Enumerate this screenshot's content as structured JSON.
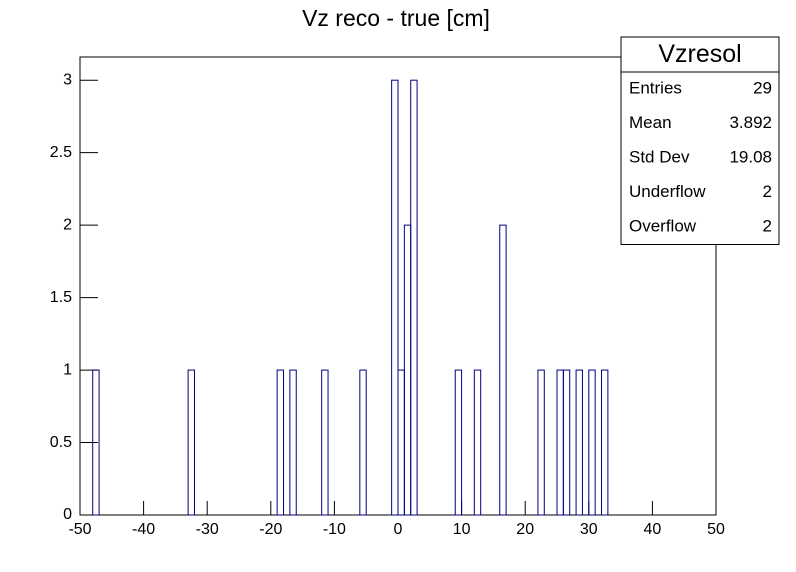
{
  "chart_data": {
    "type": "histogram",
    "title": "Vz reco - true [cm]",
    "bins": [
      -50,
      -49,
      -48,
      -47,
      -46,
      -45,
      -44,
      -43,
      -42,
      -41,
      -40,
      -39,
      -38,
      -37,
      -36,
      -35,
      -34,
      -33,
      -32,
      -31,
      -30,
      -29,
      -28,
      -27,
      -26,
      -25,
      -24,
      -23,
      -22,
      -21,
      -20,
      -19,
      -18,
      -17,
      -16,
      -15,
      -14,
      -13,
      -12,
      -11,
      -10,
      -9,
      -8,
      -7,
      -6,
      -5,
      -4,
      -3,
      -2,
      -1,
      0,
      1,
      2,
      3,
      4,
      5,
      6,
      7,
      8,
      9,
      10,
      11,
      12,
      13,
      14,
      15,
      16,
      17,
      18,
      19,
      20,
      21,
      22,
      23,
      24,
      25,
      26,
      27,
      28,
      29,
      30,
      31,
      32,
      33,
      34,
      35,
      36,
      37,
      38,
      39,
      40,
      41,
      42,
      43,
      44,
      45,
      46,
      47,
      48,
      49,
      50
    ],
    "values": [
      0,
      0,
      1,
      0,
      0,
      0,
      0,
      0,
      0,
      0,
      0,
      0,
      0,
      0,
      0,
      0,
      0,
      1,
      0,
      0,
      0,
      0,
      0,
      0,
      0,
      0,
      0,
      0,
      0,
      0,
      0,
      1,
      0,
      1,
      0,
      0,
      0,
      0,
      1,
      0,
      0,
      0,
      0,
      0,
      1,
      0,
      0,
      0,
      0,
      3,
      1,
      2,
      3,
      0,
      0,
      0,
      0,
      0,
      0,
      1,
      0,
      0,
      1,
      0,
      0,
      0,
      2,
      0,
      0,
      0,
      0,
      0,
      1,
      0,
      0,
      1,
      1,
      0,
      1,
      0,
      1,
      0,
      1,
      0,
      0,
      0,
      0,
      0,
      0,
      0,
      0,
      0,
      0,
      0,
      0,
      0,
      0,
      0,
      0,
      0
    ],
    "color": "#000080",
    "xlim": [
      -50,
      50
    ],
    "xticks": [
      -50,
      -40,
      -30,
      -20,
      -10,
      0,
      10,
      20,
      30,
      40,
      50
    ],
    "ylim": [
      0,
      3.16
    ],
    "yticks": [
      0,
      0.5,
      1,
      1.5,
      2,
      2.5,
      3
    ],
    "stats": {
      "title": "Vzresol",
      "rows": [
        {
          "label": "Entries",
          "value": 29
        },
        {
          "label": "Mean",
          "value": 3.892
        },
        {
          "label": "Std Dev",
          "value": 19.08
        },
        {
          "label": "Underflow",
          "value": 2
        },
        {
          "label": "Overflow",
          "value": 2
        }
      ]
    }
  }
}
